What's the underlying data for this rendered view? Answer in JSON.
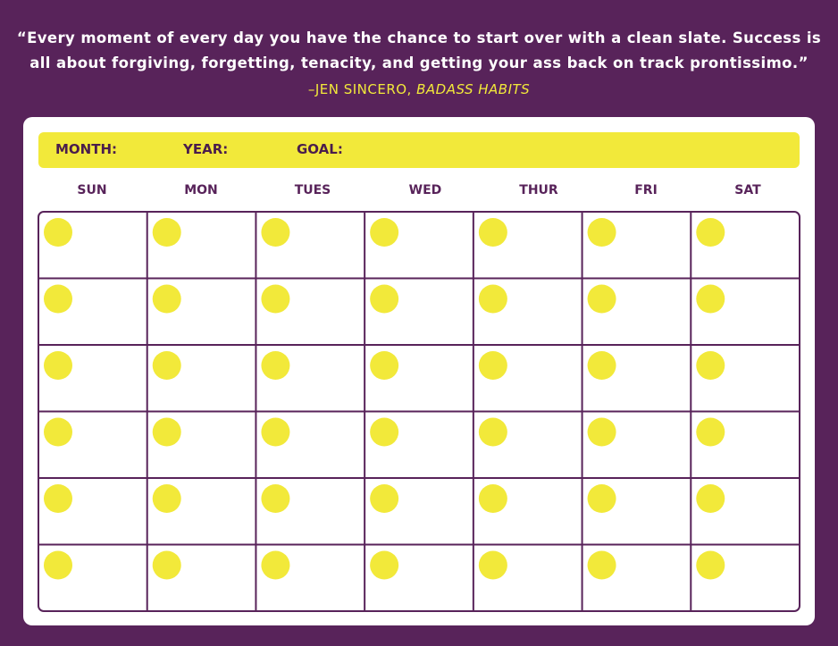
{
  "quote": {
    "lines": [
      "“Every moment of every day you have the chance to start over with a clean slate. Success is",
      "all about forgiving, forgetting, tenacity, and getting your ass back on track prontissimo.”"
    ],
    "author": "–JEN SINCERO, ",
    "book": "BADASS HABITS"
  },
  "header": {
    "month": "MONTH:",
    "year": "YEAR:",
    "goal": "GOAL:"
  },
  "days": [
    "SUN",
    "MON",
    "TUES",
    "WED",
    "THUR",
    "FRI",
    "SAT"
  ]
}
